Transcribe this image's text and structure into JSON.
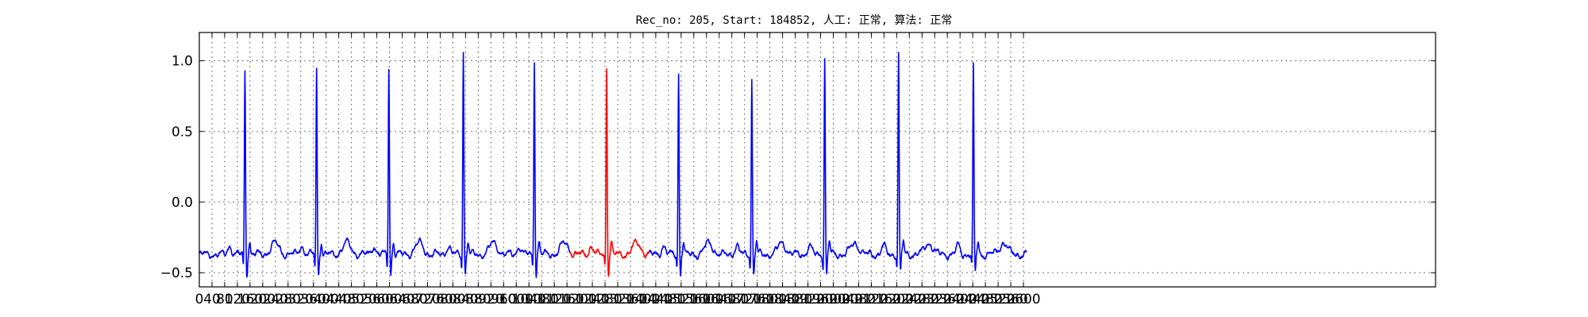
{
  "chart_data": {
    "type": "line",
    "title": "Rec_no: 205, Start: 184852, 人工: 正常, 算法: 正常",
    "xlabel": "",
    "ylabel": "",
    "xlim": [
      0,
      3900
    ],
    "ylim": [
      -0.6,
      1.2
    ],
    "grid": true,
    "xticks": [
      0,
      40,
      80,
      120,
      160,
      200,
      240,
      280,
      320,
      360,
      400,
      440,
      480,
      520,
      560,
      600,
      640,
      680,
      720,
      760,
      800,
      840,
      880,
      920,
      960,
      1000,
      1040,
      1080,
      1120,
      1160,
      1200,
      1240,
      1280,
      1320,
      1360,
      1400,
      1440,
      1480,
      1520,
      1560,
      1600,
      1640,
      1680,
      1720,
      1760,
      1800,
      1840,
      1880,
      1920,
      1960,
      2000,
      2040,
      2080,
      2120,
      2160,
      2200,
      2240,
      2280,
      2320,
      2360,
      2400,
      2440,
      2480,
      2520,
      2560,
      2600
    ],
    "yticks": [
      -0.5,
      0.0,
      0.5,
      1.0
    ],
    "ytick_labels": [
      "−0.5",
      "0.0",
      "0.5",
      "1.0"
    ],
    "data_x_end": 2610,
    "r_peaks": [
      {
        "x": 144,
        "y": 0.85
      },
      {
        "x": 370,
        "y": 0.86
      },
      {
        "x": 598,
        "y": 0.87
      },
      {
        "x": 833,
        "y": 1.0
      },
      {
        "x": 1057,
        "y": 0.93
      },
      {
        "x": 1285,
        "y": 0.89
      },
      {
        "x": 1512,
        "y": 0.84
      },
      {
        "x": 1743,
        "y": 0.79
      },
      {
        "x": 1973,
        "y": 0.94
      },
      {
        "x": 2206,
        "y": 0.98
      },
      {
        "x": 2442,
        "y": 0.88
      }
    ],
    "baseline": -0.37,
    "series": [
      {
        "x_range": [
          0,
          1170
        ],
        "color": "#0000ff"
      },
      {
        "x_range": [
          1170,
          1420
        ],
        "color": "#ff0000"
      },
      {
        "x_range": [
          1420,
          2610
        ],
        "color": "#0000ff"
      }
    ]
  }
}
